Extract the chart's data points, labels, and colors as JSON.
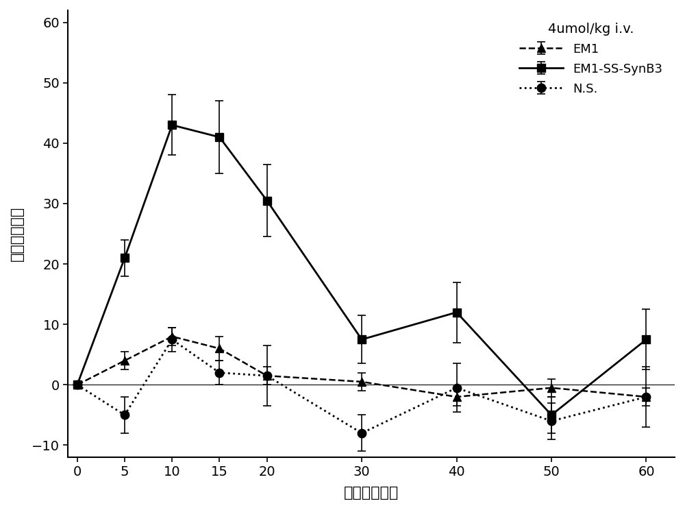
{
  "x": [
    0,
    5,
    10,
    15,
    20,
    30,
    40,
    50,
    60
  ],
  "em1_y": [
    0,
    4,
    8,
    6,
    1.5,
    0.5,
    -2,
    -0.5,
    -2
  ],
  "em1_err": [
    0,
    1.5,
    1.5,
    2,
    1.5,
    1.5,
    1.5,
    1.5,
    1.5
  ],
  "em1ss_y": [
    0,
    21,
    43,
    41,
    30.5,
    7.5,
    12,
    -5,
    7.5
  ],
  "em1ss_err": [
    0,
    3,
    5,
    6,
    6,
    4,
    5,
    3,
    5
  ],
  "ns_y": [
    0,
    -5,
    7.5,
    2,
    1.5,
    -8,
    -0.5,
    -6,
    -2
  ],
  "ns_err": [
    0,
    3,
    2,
    2,
    5,
    3,
    4,
    3,
    5
  ],
  "xlabel": "时间（分钟）",
  "ylabel": "最大镇痛效应",
  "title": "4umol/kg i.v.",
  "legend_em1": "EM1",
  "legend_em1ss": "EM1-SS-SynB3",
  "legend_ns": "N.S.",
  "xlim": [
    -1,
    63
  ],
  "ylim": [
    -12,
    62
  ],
  "xticks": [
    0,
    5,
    10,
    15,
    20,
    30,
    40,
    50,
    60
  ],
  "yticks": [
    -10,
    0,
    10,
    20,
    30,
    40,
    50,
    60
  ],
  "color": "#000000",
  "bg_color": "#ffffff"
}
